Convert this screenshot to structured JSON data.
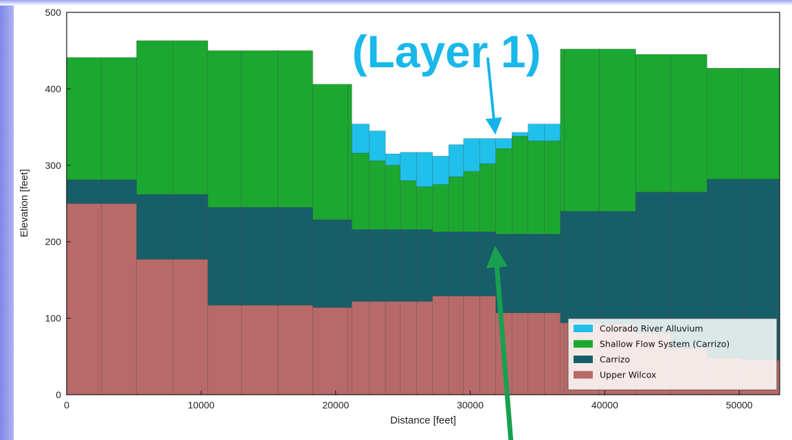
{
  "chart_data": {
    "type": "area",
    "xlabel": "Distance [feet]",
    "ylabel": "Elevation [feet]",
    "xlim": [
      0,
      53000
    ],
    "ylim": [
      0,
      500
    ],
    "xticks": [
      0,
      10000,
      20000,
      30000,
      40000,
      50000
    ],
    "yticks": [
      0,
      100,
      200,
      300,
      400,
      500
    ],
    "grid": false,
    "legend_position": "lower-right",
    "cell_edges": [
      0,
      2600,
      5200,
      7900,
      10500,
      13000,
      15700,
      18300,
      20900,
      21200,
      22500,
      23700,
      24800,
      26000,
      27200,
      28400,
      29500,
      30700,
      31900,
      33100,
      34300,
      35500,
      36700,
      37000,
      39600,
      42300,
      44900,
      47600,
      50200,
      53000
    ],
    "layers": {
      "upper_wilcox_top": [
        250,
        250,
        177,
        177,
        117,
        117,
        117,
        114,
        114,
        122,
        122,
        122,
        122,
        122,
        129,
        129,
        129,
        129,
        107,
        107,
        107,
        107,
        94,
        94,
        92,
        80,
        60,
        48,
        45
      ],
      "carrizo_top": [
        281,
        281,
        262,
        262,
        245,
        245,
        245,
        229,
        229,
        216,
        216,
        216,
        216,
        216,
        213,
        213,
        213,
        213,
        210,
        210,
        210,
        210,
        240,
        240,
        240,
        265,
        265,
        282,
        282
      ],
      "shallow_top": [
        441,
        441,
        463,
        463,
        450,
        450,
        450,
        406,
        406,
        316,
        306,
        300,
        280,
        272,
        275,
        285,
        292,
        302,
        322,
        338,
        332,
        332,
        452,
        452,
        452,
        445,
        445,
        427,
        427
      ],
      "alluvium_top": [
        null,
        null,
        null,
        null,
        null,
        null,
        null,
        null,
        null,
        354,
        345,
        315,
        317,
        317,
        312,
        327,
        335,
        335,
        335,
        343,
        354,
        354,
        null,
        null,
        null,
        null,
        null,
        null,
        null
      ]
    },
    "legend": [
      {
        "label": "Colorado River Alluvium",
        "color": "#1fc0ea"
      },
      {
        "label": "Shallow Flow System (Carrizo)",
        "color": "#1ca731"
      },
      {
        "label": "Carrizo",
        "color": "#175f68"
      },
      {
        "label": "Upper Wilcox",
        "color": "#b86a68"
      }
    ],
    "annotations": [
      {
        "text": "(Layer 1)",
        "color": "#1ab8ea"
      }
    ]
  },
  "colors": {
    "alluvium": "#1fc0ea",
    "shallow": "#1ca731",
    "carrizo": "#175f68",
    "upper_wilcox": "#b86a68",
    "arrow_blue": "#12b4ea",
    "arrow_green": "#18a050",
    "cell_line": "#333333"
  }
}
